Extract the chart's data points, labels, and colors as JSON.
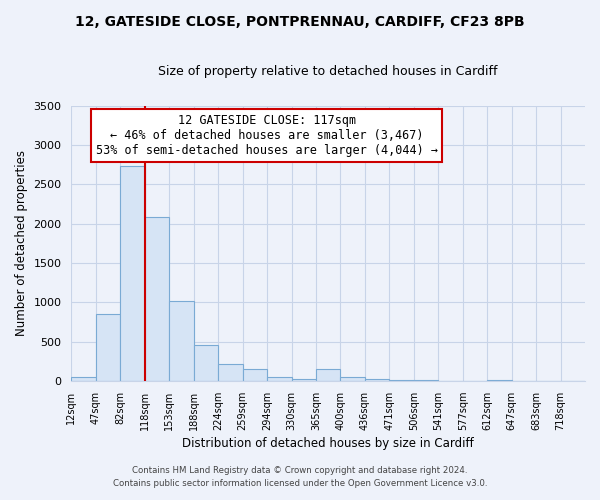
{
  "title": "12, GATESIDE CLOSE, PONTPRENNAU, CARDIFF, CF23 8PB",
  "subtitle": "Size of property relative to detached houses in Cardiff",
  "xlabel": "Distribution of detached houses by size in Cardiff",
  "ylabel": "Number of detached properties",
  "bar_color": "#d6e4f5",
  "bar_edge_color": "#7aaad4",
  "bin_labels": [
    "12sqm",
    "47sqm",
    "82sqm",
    "118sqm",
    "153sqm",
    "188sqm",
    "224sqm",
    "259sqm",
    "294sqm",
    "330sqm",
    "365sqm",
    "400sqm",
    "436sqm",
    "471sqm",
    "506sqm",
    "541sqm",
    "577sqm",
    "612sqm",
    "647sqm",
    "683sqm",
    "718sqm"
  ],
  "bin_values": [
    55,
    850,
    2730,
    2080,
    1010,
    455,
    210,
    145,
    55,
    25,
    150,
    55,
    20,
    5,
    5,
    0,
    0,
    5,
    0,
    0,
    0
  ],
  "vline_x_index": 3,
  "vline_color": "#cc0000",
  "annotation_title": "12 GATESIDE CLOSE: 117sqm",
  "annotation_line1": "← 46% of detached houses are smaller (3,467)",
  "annotation_line2": "53% of semi-detached houses are larger (4,044) →",
  "annotation_box_color": "#ffffff",
  "annotation_box_edge": "#cc0000",
  "ylim": [
    0,
    3500
  ],
  "footer_line1": "Contains HM Land Registry data © Crown copyright and database right 2024.",
  "footer_line2": "Contains public sector information licensed under the Open Government Licence v3.0.",
  "background_color": "#eef2fa",
  "plot_bg_color": "#eef2fa",
  "grid_color": "#c8d4e8",
  "title_fontsize": 10,
  "subtitle_fontsize": 9
}
